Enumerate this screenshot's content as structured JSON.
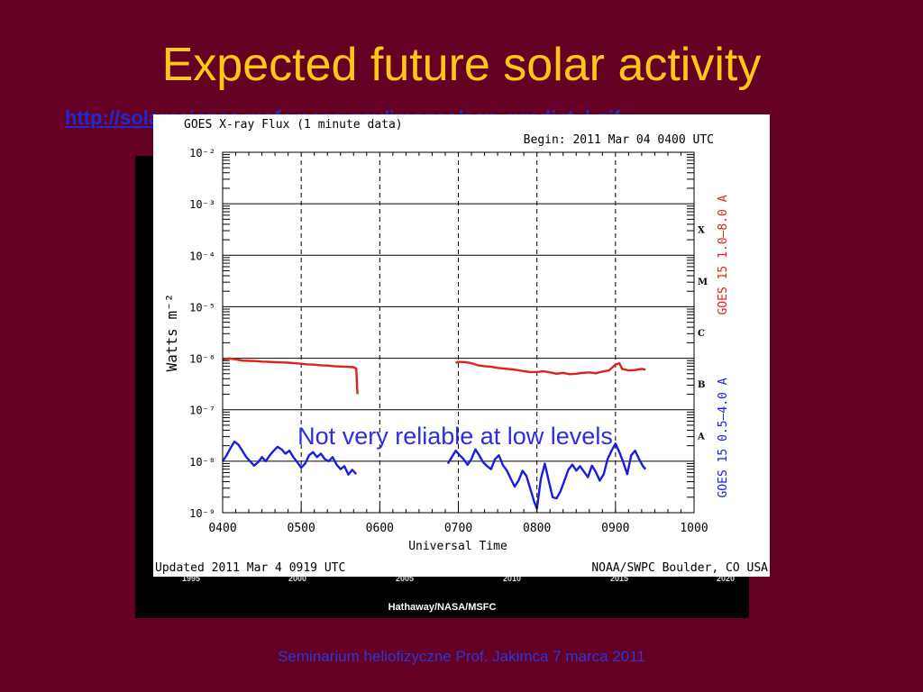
{
  "slide": {
    "title": "Expected future solar activity",
    "link": "http://solarscience.msfc.nasa.gov/images/ssn_predict_l.gif",
    "footer": "Seminarium heliofizyczne Prof. Jakimca   7 marca 2011",
    "overlay_note": "Not very reliable at low levels"
  },
  "background_chart": {
    "credit": "Hathaway/NASA/MSFC",
    "x_ticks": [
      "1995",
      "2000",
      "2005",
      "2010",
      "2015",
      "2020"
    ]
  },
  "chart_data": {
    "type": "line",
    "title": "GOES X-ray Flux (1 minute data)",
    "begin_label": "Begin: 2011 Mar 04 0400 UTC",
    "xlabel": "Universal Time",
    "ylabel": "Watts m⁻²",
    "y_scale": "log",
    "ylim": [
      1e-09,
      0.01
    ],
    "y_ticks": [
      {
        "value": 0.01,
        "label": "10⁻²"
      },
      {
        "value": 0.001,
        "label": "10⁻³"
      },
      {
        "value": 0.0001,
        "label": "10⁻⁴"
      },
      {
        "value": 1e-05,
        "label": "10⁻⁵"
      },
      {
        "value": 1e-06,
        "label": "10⁻⁶"
      },
      {
        "value": 1e-07,
        "label": "10⁻⁷"
      },
      {
        "value": 1e-08,
        "label": "10⁻⁸"
      },
      {
        "value": 1e-09,
        "label": "10⁻⁹"
      }
    ],
    "xlim": [
      "0400",
      "1000"
    ],
    "x_ticks": [
      "0400",
      "0500",
      "0600",
      "0700",
      "0800",
      "0900",
      "1000"
    ],
    "class_labels": [
      {
        "label": "X",
        "value": 0.000316
      },
      {
        "label": "M",
        "value": 3.16e-05
      },
      {
        "label": "C",
        "value": 3.16e-06
      },
      {
        "label": "B",
        "value": 3.16e-07
      },
      {
        "label": "A",
        "value": 3.16e-08
      }
    ],
    "grid": true,
    "updated_label": "Updated 2011 Mar  4 0919 UTC",
    "source_label": "NOAA/SWPC Boulder, CO USA",
    "series": [
      {
        "name": "GOES 15 1.0–8.0 A",
        "color": "#e0201c",
        "segments": [
          [
            [
              "0400",
              9.4e-07
            ],
            [
              "0405",
              9.9e-07
            ],
            [
              "0410",
              9.5e-07
            ],
            [
              "0415",
              9e-07
            ],
            [
              "0420",
              8.9e-07
            ],
            [
              "0425",
              8.8e-07
            ],
            [
              "0430",
              8.6e-07
            ],
            [
              "0435",
              8.5e-07
            ],
            [
              "0440",
              8.4e-07
            ],
            [
              "0445",
              8.3e-07
            ],
            [
              "0450",
              8.2e-07
            ],
            [
              "0455",
              8e-07
            ],
            [
              "0500",
              7.8e-07
            ],
            [
              "0505",
              7.6e-07
            ],
            [
              "0510",
              7.5e-07
            ],
            [
              "0515",
              7.3e-07
            ],
            [
              "0520",
              7.2e-07
            ],
            [
              "0525",
              7e-07
            ],
            [
              "0530",
              6.9e-07
            ],
            [
              "0535",
              6.8e-07
            ],
            [
              "0540",
              6.7e-07
            ],
            [
              "0542",
              6.3e-07
            ],
            [
              "0543",
              2e-07
            ]
          ],
          [
            [
              "0658",
              8.1e-07
            ],
            [
              "0700",
              8.5e-07
            ],
            [
              "0705",
              8.4e-07
            ],
            [
              "0710",
              8e-07
            ],
            [
              "0715",
              7.3e-07
            ],
            [
              "0720",
              7e-07
            ],
            [
              "0725",
              6.8e-07
            ],
            [
              "0730",
              6.5e-07
            ],
            [
              "0735",
              6.3e-07
            ],
            [
              "0740",
              6.1e-07
            ],
            [
              "0745",
              5.9e-07
            ],
            [
              "0750",
              5.6e-07
            ],
            [
              "0755",
              5.4e-07
            ],
            [
              "0800",
              5.4e-07
            ],
            [
              "0805",
              5.6e-07
            ],
            [
              "0810",
              5.3e-07
            ],
            [
              "0815",
              5e-07
            ],
            [
              "0820",
              5.2e-07
            ],
            [
              "0825",
              4.9e-07
            ],
            [
              "0830",
              5e-07
            ],
            [
              "0835",
              5.2e-07
            ],
            [
              "0840",
              5.3e-07
            ],
            [
              "0845",
              5.1e-07
            ],
            [
              "0850",
              5.5e-07
            ],
            [
              "0855",
              5.8e-07
            ],
            [
              "0900",
              7.5e-07
            ],
            [
              "0903",
              8e-07
            ],
            [
              "0905",
              6.2e-07
            ],
            [
              "0910",
              5.8e-07
            ],
            [
              "0915",
              5.9e-07
            ],
            [
              "0920",
              6.2e-07
            ],
            [
              "0923",
              6e-07
            ]
          ]
        ]
      },
      {
        "name": "GOES 15 0.5–4.0 A",
        "color": "#1a1ce0",
        "segments": [
          [
            [
              "0400",
              1e-08
            ],
            [
              "0403",
              1.3e-08
            ],
            [
              "0406",
              1.8e-08
            ],
            [
              "0409",
              2.4e-08
            ],
            [
              "0412",
              2.1e-08
            ],
            [
              "0415",
              1.6e-08
            ],
            [
              "0418",
              1.2e-08
            ],
            [
              "0421",
              1e-08
            ],
            [
              "0424",
              8.2e-09
            ],
            [
              "0427",
              9.5e-09
            ],
            [
              "0430",
              1.2e-08
            ],
            [
              "0433",
              1e-08
            ],
            [
              "0436",
              1.3e-08
            ],
            [
              "0439",
              1.6e-08
            ],
            [
              "0442",
              1.9e-08
            ],
            [
              "0445",
              1.7e-08
            ],
            [
              "0448",
              1.4e-08
            ],
            [
              "0451",
              1.6e-08
            ],
            [
              "0454",
              1.2e-08
            ],
            [
              "0457",
              9.6e-09
            ],
            [
              "0500",
              7.5e-09
            ],
            [
              "0503",
              9e-09
            ],
            [
              "0506",
              1.3e-08
            ],
            [
              "0509",
              1.5e-08
            ],
            [
              "0512",
              1.2e-08
            ],
            [
              "0515",
              1.4e-08
            ],
            [
              "0518",
              1.1e-08
            ],
            [
              "0521",
              1e-08
            ],
            [
              "0524",
              1.2e-08
            ],
            [
              "0527",
              8.6e-09
            ],
            [
              "0530",
              7e-09
            ],
            [
              "0533",
              8e-09
            ],
            [
              "0536",
              5.5e-09
            ],
            [
              "0539",
              6.8e-09
            ],
            [
              "0542",
              5.6e-09
            ]
          ],
          [
            [
              "0652",
              9e-09
            ],
            [
              "0655",
              1.2e-08
            ],
            [
              "0658",
              1.6e-08
            ],
            [
              "0701",
              1.3e-08
            ],
            [
              "0704",
              1.1e-08
            ],
            [
              "0707",
              8.5e-09
            ],
            [
              "0710",
              1.1e-08
            ],
            [
              "0713",
              1.7e-08
            ],
            [
              "0716",
              1.3e-08
            ],
            [
              "0719",
              9.5e-09
            ],
            [
              "0722",
              8e-09
            ],
            [
              "0725",
              7e-09
            ],
            [
              "0728",
              1.1e-08
            ],
            [
              "0731",
              1.3e-08
            ],
            [
              "0734",
              8.4e-09
            ],
            [
              "0737",
              6.6e-09
            ],
            [
              "0740",
              4.6e-09
            ],
            [
              "0743",
              3.2e-09
            ],
            [
              "0746",
              4.2e-09
            ],
            [
              "0749",
              6.5e-09
            ],
            [
              "0752",
              5.2e-09
            ],
            [
              "0755",
              2.9e-09
            ],
            [
              "0758",
              1.6e-09
            ],
            [
              "0800",
              1.2e-09
            ],
            [
              "0803",
              4.5e-09
            ],
            [
              "0806",
              9e-09
            ],
            [
              "0809",
              4.2e-09
            ],
            [
              "0812",
              2e-09
            ],
            [
              "0815",
              1.9e-09
            ],
            [
              "0818",
              2.6e-09
            ],
            [
              "0821",
              4.2e-09
            ],
            [
              "0824",
              6.8e-09
            ],
            [
              "0827",
              8.6e-09
            ],
            [
              "0830",
              6.6e-09
            ],
            [
              "0833",
              8e-09
            ],
            [
              "0836",
              6.2e-09
            ],
            [
              "0839",
              4.9e-09
            ],
            [
              "0842",
              8.2e-09
            ],
            [
              "0845",
              6.2e-09
            ],
            [
              "0848",
              4.2e-09
            ],
            [
              "0851",
              5.6e-09
            ],
            [
              "0854",
              1.1e-08
            ],
            [
              "0857",
              1.6e-08
            ],
            [
              "0900",
              2.2e-08
            ],
            [
              "0903",
              1.5e-08
            ],
            [
              "0906",
              9.5e-09
            ],
            [
              "0909",
              5.6e-09
            ],
            [
              "0912",
              1.3e-08
            ],
            [
              "0915",
              1.6e-08
            ],
            [
              "0918",
              1.1e-08
            ],
            [
              "0921",
              8e-09
            ],
            [
              "0923",
              7e-09
            ]
          ]
        ]
      }
    ]
  }
}
